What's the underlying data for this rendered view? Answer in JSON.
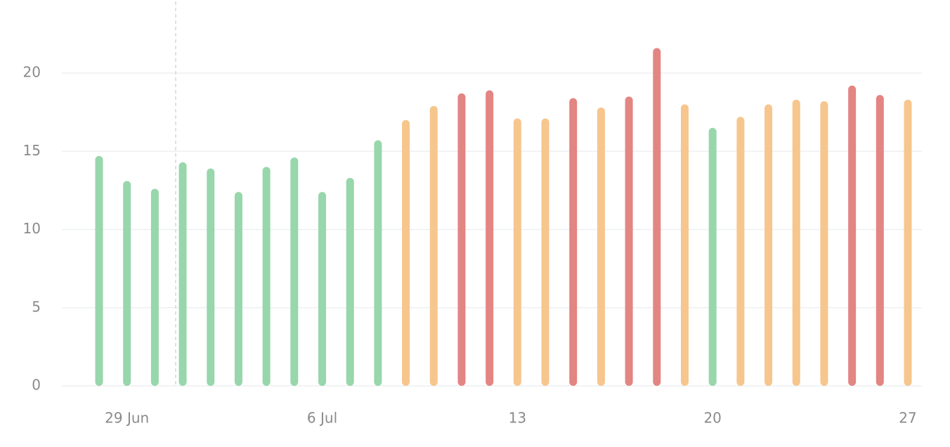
{
  "chart_data": {
    "type": "bar",
    "categories": [
      null,
      "29 Jun",
      null,
      null,
      null,
      null,
      null,
      null,
      "6 Jul",
      null,
      null,
      null,
      null,
      null,
      null,
      "13",
      null,
      null,
      null,
      null,
      null,
      null,
      "20",
      null,
      null,
      null,
      null,
      null,
      null,
      "27"
    ],
    "values": [
      14.7,
      13.1,
      12.6,
      14.3,
      13.9,
      12.4,
      14.0,
      14.6,
      12.4,
      13.3,
      15.7,
      17.0,
      17.9,
      18.7,
      18.9,
      17.1,
      17.1,
      18.4,
      17.8,
      18.5,
      21.6,
      18.0,
      16.5,
      17.2,
      18.0,
      18.3,
      18.2,
      19.2,
      18.6,
      18.3
    ],
    "colors": [
      "#98d6ab",
      "#98d6ab",
      "#98d6ab",
      "#98d6ab",
      "#98d6ab",
      "#98d6ab",
      "#98d6ab",
      "#98d6ab",
      "#98d6ab",
      "#98d6ab",
      "#98d6ab",
      "#f6c68d",
      "#f6c68d",
      "#e38583",
      "#e38583",
      "#f6c68d",
      "#f6c68d",
      "#e38583",
      "#f6c68d",
      "#e38583",
      "#e38583",
      "#f6c68d",
      "#98d6ab",
      "#f6c68d",
      "#f6c68d",
      "#f6c68d",
      "#f6c68d",
      "#e38583",
      "#e38583",
      "#f6c68d"
    ],
    "ylim": [
      0,
      22
    ],
    "yticks": [
      0,
      5,
      10,
      15,
      20
    ],
    "grid": true
  }
}
